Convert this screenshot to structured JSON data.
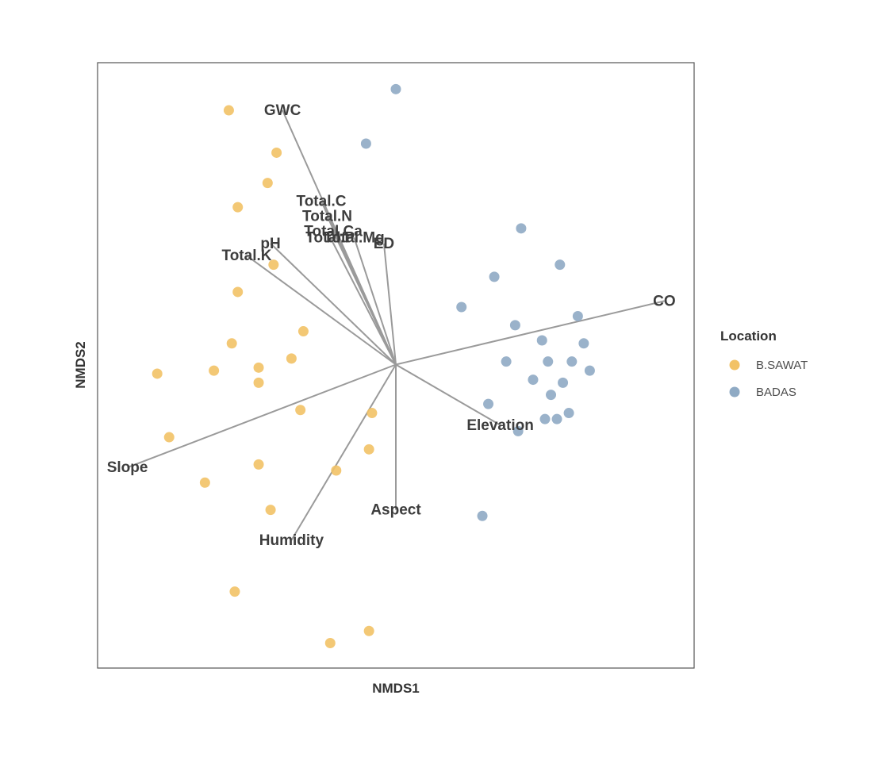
{
  "chart_data": {
    "type": "scatter",
    "title": "",
    "xlabel": "NMDS1",
    "ylabel": "NMDS2",
    "xlim": [
      -1.0,
      1.0
    ],
    "ylim": [
      -1.0,
      1.0
    ],
    "grid": false,
    "legend": {
      "title": "Location",
      "placement": "right"
    },
    "series": [
      {
        "name": "B.SAWAT",
        "color": "#f2c266",
        "points": [
          {
            "x": -0.56,
            "y": 0.84
          },
          {
            "x": -0.4,
            "y": 0.7
          },
          {
            "x": -0.43,
            "y": 0.6
          },
          {
            "x": -0.53,
            "y": 0.52
          },
          {
            "x": -0.41,
            "y": 0.33
          },
          {
            "x": -0.53,
            "y": 0.24
          },
          {
            "x": -0.31,
            "y": 0.11
          },
          {
            "x": -0.55,
            "y": 0.07
          },
          {
            "x": -0.35,
            "y": 0.02
          },
          {
            "x": -0.46,
            "y": -0.01
          },
          {
            "x": -0.8,
            "y": -0.03
          },
          {
            "x": -0.61,
            "y": -0.02
          },
          {
            "x": -0.46,
            "y": -0.06
          },
          {
            "x": -0.32,
            "y": -0.15
          },
          {
            "x": -0.08,
            "y": -0.16
          },
          {
            "x": -0.76,
            "y": -0.24
          },
          {
            "x": -0.09,
            "y": -0.28
          },
          {
            "x": -0.46,
            "y": -0.33
          },
          {
            "x": -0.2,
            "y": -0.35
          },
          {
            "x": -0.64,
            "y": -0.39
          },
          {
            "x": -0.42,
            "y": -0.48
          },
          {
            "x": -0.54,
            "y": -0.75
          },
          {
            "x": -0.09,
            "y": -0.88
          },
          {
            "x": -0.22,
            "y": -0.92
          }
        ]
      },
      {
        "name": "BADAS",
        "color": "#8faac4",
        "points": [
          {
            "x": 0.0,
            "y": 0.91
          },
          {
            "x": -0.1,
            "y": 0.73
          },
          {
            "x": 0.42,
            "y": 0.45
          },
          {
            "x": 0.55,
            "y": 0.33
          },
          {
            "x": 0.33,
            "y": 0.29
          },
          {
            "x": 0.22,
            "y": 0.19
          },
          {
            "x": 0.61,
            "y": 0.16
          },
          {
            "x": 0.4,
            "y": 0.13
          },
          {
            "x": 0.49,
            "y": 0.08
          },
          {
            "x": 0.63,
            "y": 0.07
          },
          {
            "x": 0.37,
            "y": 0.01
          },
          {
            "x": 0.51,
            "y": 0.01
          },
          {
            "x": 0.59,
            "y": 0.01
          },
          {
            "x": 0.65,
            "y": -0.02
          },
          {
            "x": 0.46,
            "y": -0.05
          },
          {
            "x": 0.56,
            "y": -0.06
          },
          {
            "x": 0.52,
            "y": -0.1
          },
          {
            "x": 0.31,
            "y": -0.13
          },
          {
            "x": 0.58,
            "y": -0.16
          },
          {
            "x": 0.54,
            "y": -0.18
          },
          {
            "x": 0.5,
            "y": -0.18
          },
          {
            "x": 0.41,
            "y": -0.22
          },
          {
            "x": 0.29,
            "y": -0.5
          }
        ]
      }
    ],
    "vectors": [
      {
        "label": "GWC",
        "x": -0.38,
        "y": 0.84
      },
      {
        "label": "Total.C",
        "x": -0.25,
        "y": 0.54
      },
      {
        "label": "Total.N",
        "x": -0.23,
        "y": 0.49
      },
      {
        "label": "Total.Ca",
        "x": -0.21,
        "y": 0.44
      },
      {
        "label": "Total.P",
        "x": -0.22,
        "y": 0.42
      },
      {
        "label": "Total.Mg",
        "x": -0.14,
        "y": 0.42
      },
      {
        "label": "ED",
        "x": -0.04,
        "y": 0.4
      },
      {
        "label": "pH",
        "x": -0.42,
        "y": 0.4
      },
      {
        "label": "Total.K",
        "x": -0.5,
        "y": 0.36
      },
      {
        "label": "CO",
        "x": 0.9,
        "y": 0.21
      },
      {
        "label": "Elevation",
        "x": 0.35,
        "y": -0.2
      },
      {
        "label": "Slope",
        "x": -0.9,
        "y": -0.34
      },
      {
        "label": "Humidity",
        "x": -0.35,
        "y": -0.58
      },
      {
        "label": "Aspect",
        "x": 0.0,
        "y": -0.48
      }
    ],
    "vector_color": "#9a9a9a"
  }
}
